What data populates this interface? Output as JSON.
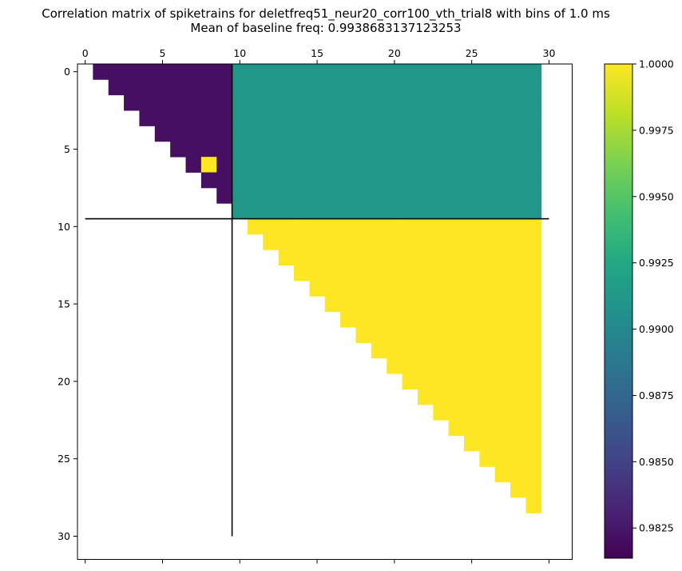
{
  "chart_data": {
    "type": "heatmap",
    "title_line1": "Correlation matrix of spiketrains for deletfreq51_neur20_corr100_vth_trial8 with bins of 1.0 ms",
    "title_line2": "Mean of baseline freq: 0.9938683137123253",
    "xlabel": "",
    "ylabel": "",
    "matrix_size": 30,
    "xlim": [
      -0.5,
      31.5
    ],
    "ylim": [
      31.5,
      -0.5
    ],
    "x_ticks": [
      0,
      5,
      10,
      15,
      20,
      25,
      30
    ],
    "y_ticks": [
      0,
      5,
      10,
      15,
      20,
      25,
      30
    ],
    "x_axis_position": "top-and-bottom",
    "regions": [
      {
        "name": "block-1-upper-triangle",
        "rows": [
          0,
          8
        ],
        "cols": [
          1,
          9
        ],
        "upper_triangle": true,
        "value": 0.9821
      },
      {
        "name": "block-cross",
        "rows": [
          0,
          9
        ],
        "cols": [
          10,
          29
        ],
        "upper_triangle": false,
        "value": 0.9912
      },
      {
        "name": "block-2-upper-triangle",
        "rows": [
          10,
          28
        ],
        "cols": [
          11,
          29
        ],
        "upper_triangle": true,
        "value": 1.0
      }
    ],
    "special_cells": [
      {
        "row": 6,
        "col": 8,
        "value": 1.0
      }
    ],
    "separator_lines": [
      {
        "orientation": "vertical",
        "at": 9.5,
        "from": -0.5,
        "to": 30
      },
      {
        "orientation": "horizontal",
        "at": 9.5,
        "from": 0,
        "to": 30
      }
    ],
    "colorbar": {
      "min": 0.98136,
      "max": 1.0,
      "colormap": "viridis",
      "ticks": [
        0.9825,
        0.985,
        0.9875,
        0.99,
        0.9925,
        0.995,
        0.9975,
        1.0
      ],
      "tick_labels": [
        "0.9825",
        "0.9850",
        "0.9875",
        "0.9900",
        "0.9925",
        "0.9950",
        "0.9975",
        "1.0000"
      ]
    }
  }
}
